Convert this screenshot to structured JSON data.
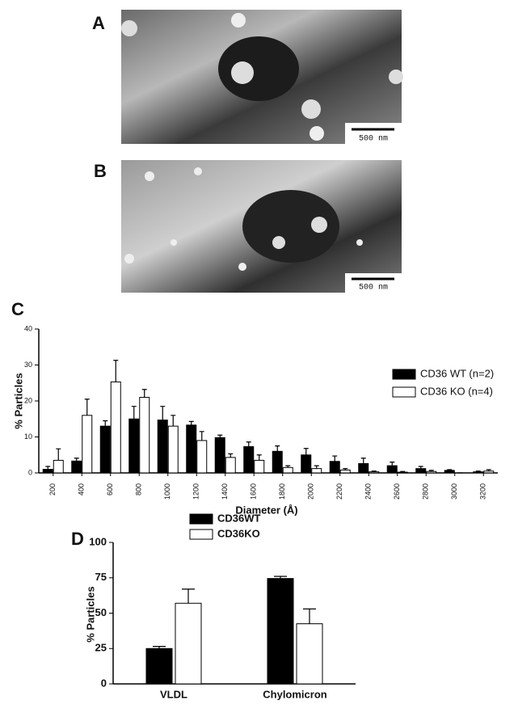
{
  "micrographs": [
    {
      "label": "A",
      "scale_bar": "500 nm"
    },
    {
      "label": "B",
      "scale_bar": "500 nm"
    }
  ],
  "chart_data": [
    {
      "type": "bar",
      "panel_label": "C",
      "x_label": "Diameter (Å)",
      "y_label": "% Particles",
      "categories": [
        "200",
        "400",
        "600",
        "800",
        "1000",
        "1200",
        "1400",
        "1600",
        "1800",
        "2000",
        "2200",
        "2400",
        "2600",
        "2800",
        "3000",
        "3200"
      ],
      "series": [
        {
          "name": "CD36 WT (n=2)",
          "color": "#000000",
          "values": [
            1,
            3.3,
            13,
            15,
            14.7,
            13.3,
            9.8,
            7.3,
            6,
            5,
            3.2,
            2.6,
            2,
            1.2,
            0.7,
            0.3
          ],
          "errors": [
            0.8,
            0.8,
            1.5,
            3.5,
            3.8,
            1,
            0.7,
            1.3,
            1.5,
            1.8,
            1.5,
            1.5,
            1,
            0.6,
            0.2,
            0.2
          ]
        },
        {
          "name": "CD36 KO (n=4)",
          "color": "#ffffff",
          "values": [
            3.5,
            16,
            25.3,
            21,
            13,
            9,
            4.3,
            3.5,
            1.5,
            1.2,
            0.8,
            0.3,
            0.2,
            0.4,
            0,
            0.5
          ],
          "errors": [
            3.2,
            4.5,
            6,
            2.2,
            3,
            2.5,
            1,
            1.5,
            0.5,
            0.8,
            0.4,
            0.2,
            0.2,
            0.3,
            0,
            0.4
          ]
        }
      ],
      "ylim": [
        0,
        40
      ],
      "yticks": [
        0,
        10,
        20,
        30,
        40
      ]
    },
    {
      "type": "bar",
      "panel_label": "D",
      "y_label": "% Particles",
      "categories": [
        "VLDL",
        "Chylomicron"
      ],
      "series": [
        {
          "name": "CD36WT",
          "color": "#000000",
          "values": [
            25,
            74.5
          ],
          "errors": [
            1.5,
            1.5
          ]
        },
        {
          "name": "CD36KO",
          "color": "#ffffff",
          "values": [
            57,
            42.5
          ],
          "errors": [
            10,
            10.5
          ]
        }
      ],
      "ylim": [
        0,
        100
      ],
      "yticks": [
        0,
        25,
        50,
        75,
        100
      ]
    }
  ]
}
